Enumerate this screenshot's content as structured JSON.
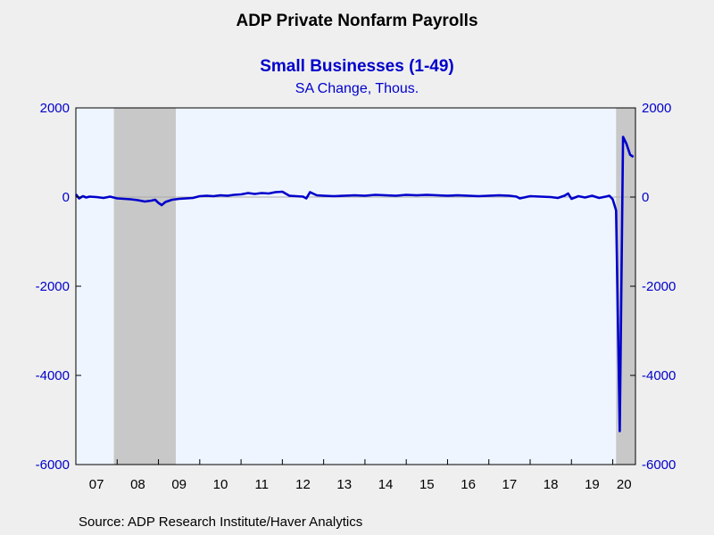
{
  "chart_data": {
    "type": "line",
    "title": "ADP Private Nonfarm Payrolls",
    "subtitle": "Small Businesses (1-49)",
    "units": "SA Change, Thous.",
    "source": "Source:  ADP Research Institute/Haver Analytics",
    "ylim": [
      -6000,
      2000
    ],
    "yticks": [
      2000,
      0,
      -2000,
      -4000,
      -6000
    ],
    "ytick_labels_left": [
      "2000",
      "0",
      "-2000",
      "-4000",
      "-6000"
    ],
    "ytick_labels_right": [
      "2000",
      "0",
      "-2000",
      "-4000",
      "-6000"
    ],
    "xlim": [
      2007.0,
      2020.55
    ],
    "xtick_labels": [
      "07",
      "08",
      "09",
      "10",
      "11",
      "12",
      "13",
      "14",
      "15",
      "16",
      "17",
      "18",
      "19",
      "20"
    ],
    "recessions": [
      [
        2007.92,
        2009.42
      ],
      [
        2020.08,
        2020.55
      ]
    ],
    "colors": {
      "line": "#0000cc",
      "plot_bg": "#eef5ff",
      "recession": "#c8c8c8",
      "page_bg": "#efefef"
    },
    "series": [
      {
        "x": [
          2007.0,
          2007.08,
          2007.17,
          2007.25,
          2007.33,
          2007.5,
          2007.67,
          2007.83,
          2008.0,
          2008.17,
          2008.33,
          2008.5,
          2008.67,
          2008.83,
          2008.92,
          2009.0,
          2009.08,
          2009.17,
          2009.33,
          2009.5,
          2009.67,
          2009.83,
          2010.0,
          2010.17,
          2010.33,
          2010.5,
          2010.67,
          2010.83,
          2011.0,
          2011.17,
          2011.33,
          2011.5,
          2011.67,
          2011.83,
          2012.0,
          2012.17,
          2012.33,
          2012.5,
          2012.58,
          2012.67,
          2012.83,
          2013.0,
          2013.25,
          2013.5,
          2013.75,
          2014.0,
          2014.25,
          2014.5,
          2014.75,
          2015.0,
          2015.25,
          2015.5,
          2015.75,
          2016.0,
          2016.25,
          2016.5,
          2016.75,
          2017.0,
          2017.25,
          2017.5,
          2017.67,
          2017.75,
          2018.0,
          2018.25,
          2018.5,
          2018.67,
          2018.83,
          2018.92,
          2019.0,
          2019.17,
          2019.33,
          2019.5,
          2019.67,
          2019.83,
          2019.92,
          2020.0,
          2020.08,
          2020.17,
          2020.25,
          2020.33,
          2020.42,
          2020.5
        ],
        "y": [
          60,
          -30,
          20,
          -10,
          10,
          0,
          -20,
          10,
          -30,
          -40,
          -50,
          -70,
          -100,
          -80,
          -60,
          -130,
          -180,
          -110,
          -60,
          -40,
          -30,
          -20,
          20,
          30,
          20,
          40,
          30,
          50,
          60,
          90,
          70,
          90,
          80,
          110,
          120,
          30,
          20,
          10,
          -30,
          110,
          40,
          30,
          20,
          30,
          40,
          30,
          50,
          40,
          30,
          50,
          40,
          50,
          40,
          30,
          40,
          30,
          20,
          30,
          40,
          30,
          10,
          -30,
          20,
          10,
          0,
          -20,
          30,
          80,
          -40,
          20,
          -10,
          30,
          -20,
          10,
          30,
          -50,
          -300,
          -5250,
          1350,
          1200,
          950,
          900
        ]
      }
    ]
  }
}
